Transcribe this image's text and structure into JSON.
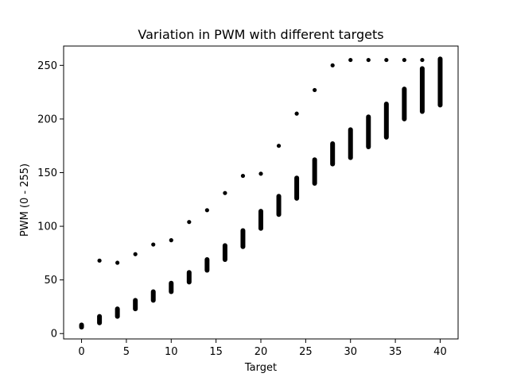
{
  "chart_data": {
    "type": "scatter",
    "title": "Variation in PWM with different targets",
    "xlabel": "Target",
    "ylabel": "PWM (0 - 255)",
    "xlim": [
      -2,
      42
    ],
    "ylim": [
      -5,
      268
    ],
    "xticks": [
      0,
      5,
      10,
      15,
      20,
      25,
      30,
      35,
      40
    ],
    "yticks": [
      0,
      50,
      100,
      150,
      200,
      250
    ],
    "grid": false,
    "legend": "none",
    "marker_color": "#000000",
    "clusters": [
      {
        "x": 0,
        "ymin": 6,
        "ymax": 8
      },
      {
        "x": 2,
        "ymin": 10,
        "ymax": 16
      },
      {
        "x": 4,
        "ymin": 16,
        "ymax": 23
      },
      {
        "x": 6,
        "ymin": 23,
        "ymax": 31
      },
      {
        "x": 8,
        "ymin": 31,
        "ymax": 39
      },
      {
        "x": 10,
        "ymin": 39,
        "ymax": 47
      },
      {
        "x": 12,
        "ymin": 48,
        "ymax": 57
      },
      {
        "x": 14,
        "ymin": 59,
        "ymax": 69
      },
      {
        "x": 16,
        "ymin": 69,
        "ymax": 82
      },
      {
        "x": 18,
        "ymin": 81,
        "ymax": 96
      },
      {
        "x": 20,
        "ymin": 98,
        "ymax": 114
      },
      {
        "x": 22,
        "ymin": 111,
        "ymax": 128
      },
      {
        "x": 24,
        "ymin": 126,
        "ymax": 145
      },
      {
        "x": 26,
        "ymin": 140,
        "ymax": 162
      },
      {
        "x": 28,
        "ymin": 158,
        "ymax": 177
      },
      {
        "x": 30,
        "ymin": 164,
        "ymax": 190
      },
      {
        "x": 32,
        "ymin": 174,
        "ymax": 202
      },
      {
        "x": 34,
        "ymin": 183,
        "ymax": 214
      },
      {
        "x": 36,
        "ymin": 200,
        "ymax": 228
      },
      {
        "x": 38,
        "ymin": 207,
        "ymax": 247
      },
      {
        "x": 40,
        "ymin": 213,
        "ymax": 256
      }
    ],
    "outliers": [
      {
        "x": 2,
        "y": 68
      },
      {
        "x": 4,
        "y": 66
      },
      {
        "x": 6,
        "y": 74
      },
      {
        "x": 8,
        "y": 83
      },
      {
        "x": 10,
        "y": 87
      },
      {
        "x": 12,
        "y": 104
      },
      {
        "x": 14,
        "y": 115
      },
      {
        "x": 16,
        "y": 131
      },
      {
        "x": 18,
        "y": 147
      },
      {
        "x": 20,
        "y": 149
      },
      {
        "x": 22,
        "y": 175
      },
      {
        "x": 24,
        "y": 205
      },
      {
        "x": 26,
        "y": 227
      },
      {
        "x": 28,
        "y": 250
      },
      {
        "x": 30,
        "y": 255
      },
      {
        "x": 32,
        "y": 255
      },
      {
        "x": 34,
        "y": 255
      },
      {
        "x": 36,
        "y": 255
      },
      {
        "x": 38,
        "y": 255
      }
    ]
  }
}
